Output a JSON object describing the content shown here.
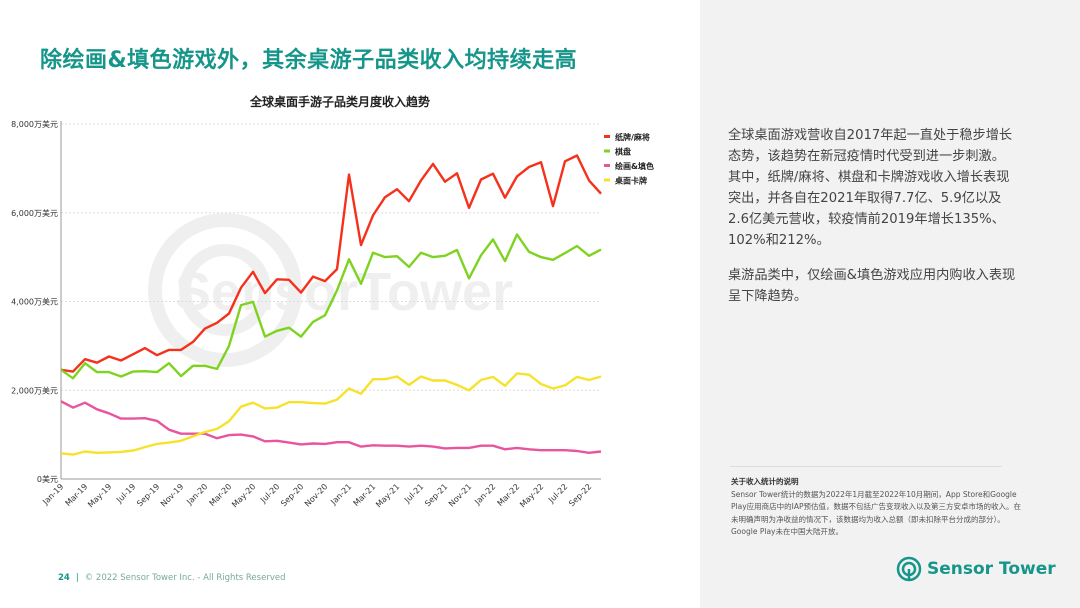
{
  "slide": {
    "title": "除绘画&填色游戏外，其余桌游子品类收入均持续走高",
    "page_number": "24",
    "copyright": "© 2022 Sensor Tower Inc. - All Rights Reserved",
    "logo_text": "Sensor Tower",
    "watermark": "SensorTower"
  },
  "side": {
    "paragraphs": [
      "全球桌面游戏营收自2017年起一直处于稳步增长态势，该趋势在新冠疫情时代受到进一步刺激。其中，纸牌/麻将、棋盘和卡牌游戏收入增长表现突出，并各自在2021年取得7.7亿、5.9亿以及2.6亿美元营收，较疫情前2019年增长135%、102%和212%。",
      "桌游品类中，仅绘画&填色游戏应用内购收入表现呈下降趋势。"
    ],
    "note_title": "关于收入统计的说明",
    "note_text": "Sensor Tower统计的数据为2022年1月截至2022年10月期间，App Store和Google Play应用商店中的IAP预估值，数据不包括广告变现收入以及第三方安卓市场的收入。在未明确声明为净收益的情况下，该数据均为收入总额（即未扣除平台分成的部分）。Google Play未在中国大陆开放。"
  },
  "chart_data": {
    "type": "line",
    "title": "全球桌面手游子品类月度收入趋势",
    "xlabel": "",
    "ylabel": "",
    "ylim": [
      0,
      8000
    ],
    "y_ticks": [
      0,
      2000,
      4000,
      6000,
      8000
    ],
    "y_tick_labels": [
      "0美元",
      "2,000万美元",
      "4,000万美元",
      "6,000万美元",
      "8,000万美元"
    ],
    "x_tick_labels": [
      "Jan-19",
      "Mar-19",
      "May-19",
      "Jul-19",
      "Sep-19",
      "Nov-19",
      "Jan-20",
      "Mar-20",
      "May-20",
      "Jul-20",
      "Sep-20",
      "Nov-20",
      "Jan-21",
      "Mar-21",
      "May-21",
      "Jul-21",
      "Sep-21",
      "Nov-21",
      "Jan-22",
      "Mar-22",
      "May-22",
      "Jul-22",
      "Sep-22"
    ],
    "x_range": [
      "Jan-19",
      "Oct-22"
    ],
    "grid": "horizontal dotted",
    "legend": "right",
    "series": [
      {
        "name": "纸牌/麻将",
        "color": "#f5311c",
        "values": [
          2460,
          2420,
          2700,
          2620,
          2760,
          2670,
          2810,
          2950,
          2790,
          2910,
          2910,
          3090,
          3390,
          3520,
          3730,
          4310,
          4670,
          4190,
          4500,
          4490,
          4200,
          4560,
          4460,
          4730,
          6860,
          5270,
          5940,
          6350,
          6530,
          6260,
          6730,
          7100,
          6700,
          6890,
          6110,
          6750,
          6880,
          6340,
          6820,
          7030,
          7140,
          6150,
          7160,
          7290,
          6730,
          6430
        ]
      },
      {
        "name": "棋盘",
        "color": "#7ed321",
        "values": [
          2460,
          2270,
          2610,
          2410,
          2410,
          2310,
          2420,
          2430,
          2410,
          2610,
          2320,
          2550,
          2550,
          2480,
          3000,
          3920,
          3990,
          3210,
          3340,
          3410,
          3210,
          3540,
          3690,
          4250,
          4950,
          4400,
          5100,
          5000,
          5020,
          4780,
          5100,
          5000,
          5030,
          5160,
          4520,
          5040,
          5400,
          4910,
          5510,
          5120,
          5000,
          4940,
          5090,
          5250,
          5030,
          5170
        ]
      },
      {
        "name": "绘画&填色",
        "color": "#e8559f",
        "values": [
          1750,
          1610,
          1720,
          1570,
          1480,
          1360,
          1360,
          1370,
          1310,
          1110,
          1020,
          1020,
          1020,
          920,
          990,
          1000,
          960,
          850,
          860,
          820,
          780,
          800,
          790,
          830,
          830,
          730,
          760,
          750,
          750,
          730,
          750,
          730,
          690,
          700,
          700,
          750,
          750,
          670,
          700,
          670,
          650,
          650,
          650,
          630,
          590,
          620
        ]
      },
      {
        "name": "桌面卡牌",
        "color": "#f7e22b",
        "values": [
          580,
          550,
          620,
          590,
          600,
          610,
          640,
          720,
          790,
          820,
          860,
          960,
          1060,
          1130,
          1300,
          1630,
          1720,
          1590,
          1610,
          1730,
          1730,
          1710,
          1700,
          1790,
          2040,
          1920,
          2250,
          2250,
          2310,
          2120,
          2310,
          2220,
          2220,
          2120,
          2000,
          2230,
          2300,
          2100,
          2380,
          2350,
          2140,
          2040,
          2110,
          2300,
          2230,
          2310
        ]
      }
    ]
  }
}
